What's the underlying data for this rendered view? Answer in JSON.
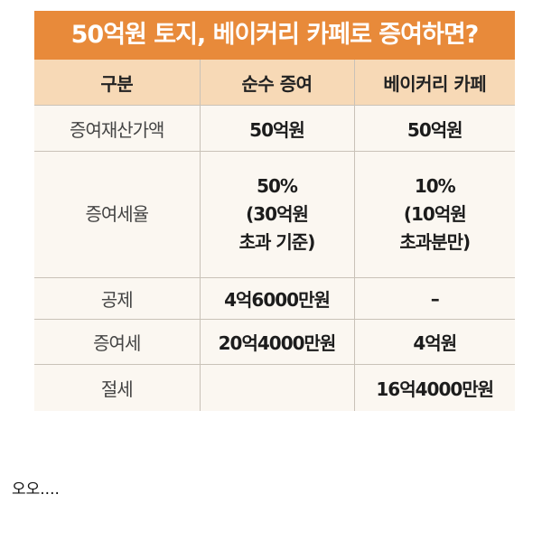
{
  "table": {
    "title": "50억원 토지, 베이커리 카페로 증여하면?",
    "headers": [
      "구분",
      "순수 증여",
      "베이커리 카페"
    ],
    "rows": [
      {
        "label": "증여재산가액",
        "pure": "50억원",
        "cafe": "50억원"
      },
      {
        "label": "증여세율",
        "pure_lines": [
          "50%",
          "(30억원",
          "초과 기준)"
        ],
        "cafe_lines": [
          "10%",
          "(10억원",
          "초과분만)"
        ]
      },
      {
        "label": "공제",
        "pure": "4억6000만원",
        "cafe": "–"
      },
      {
        "label": "증여세",
        "pure": "20억4000만원",
        "cafe": "4억원"
      },
      {
        "label": "절세",
        "pure": "",
        "cafe": "16억4000만원"
      }
    ]
  },
  "caption": "오오...."
}
